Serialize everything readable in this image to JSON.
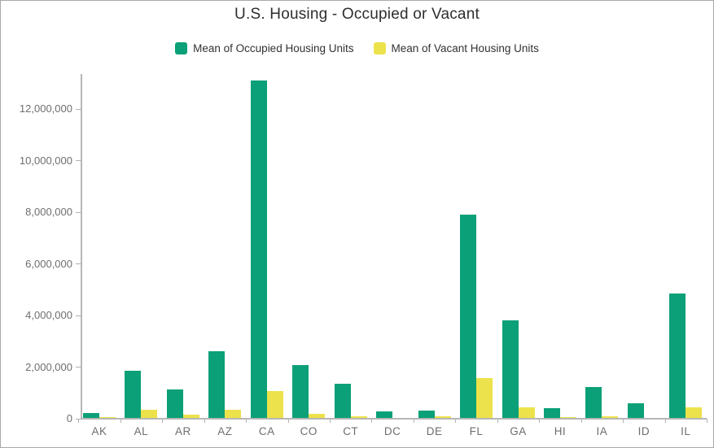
{
  "window": {
    "title": "U.S. Housing - Occupied or Vacant"
  },
  "chart_data": {
    "type": "bar",
    "title": "U.S. Housing - Occupied or Vacant",
    "xlabel": "",
    "ylabel": "",
    "grid": false,
    "legend_position": "top",
    "categories": [
      "AK",
      "AL",
      "AR",
      "AZ",
      "CA",
      "CO",
      "CT",
      "DC",
      "DE",
      "FL",
      "GA",
      "HI",
      "IA",
      "ID",
      "IL"
    ],
    "series": [
      {
        "name": "Mean of Occupied Housing Units",
        "color": "#0ba077",
        "values": [
          230000,
          1850000,
          1130000,
          2600000,
          13100000,
          2080000,
          1360000,
          270000,
          330000,
          7920000,
          3800000,
          415000,
          1230000,
          595000,
          4840000
        ]
      },
      {
        "name": "Mean of Vacant Housing Units",
        "color": "#ece24b",
        "values": [
          60000,
          350000,
          170000,
          360000,
          1070000,
          180000,
          90000,
          30000,
          80000,
          1590000,
          445000,
          50000,
          90000,
          45000,
          440000
        ]
      }
    ],
    "ylim": [
      0,
      13400000
    ],
    "yticks": [
      0,
      2000000,
      4000000,
      6000000,
      8000000,
      10000000,
      12000000
    ],
    "ytick_labels": [
      "0",
      "2,000,000",
      "4,000,000",
      "6,000,000",
      "8,000,000",
      "10,000,000",
      "12,000,000"
    ]
  },
  "colors": {
    "occupied_green": "#0ba077",
    "vacant_yellow": "#ece24b",
    "axis_line": "#b6b6b6",
    "tick_label": "#6e6e6e",
    "title_text": "#2e2e2e",
    "legend_text": "#323232",
    "border": "#a9a9a9",
    "background": "#ffffff"
  }
}
